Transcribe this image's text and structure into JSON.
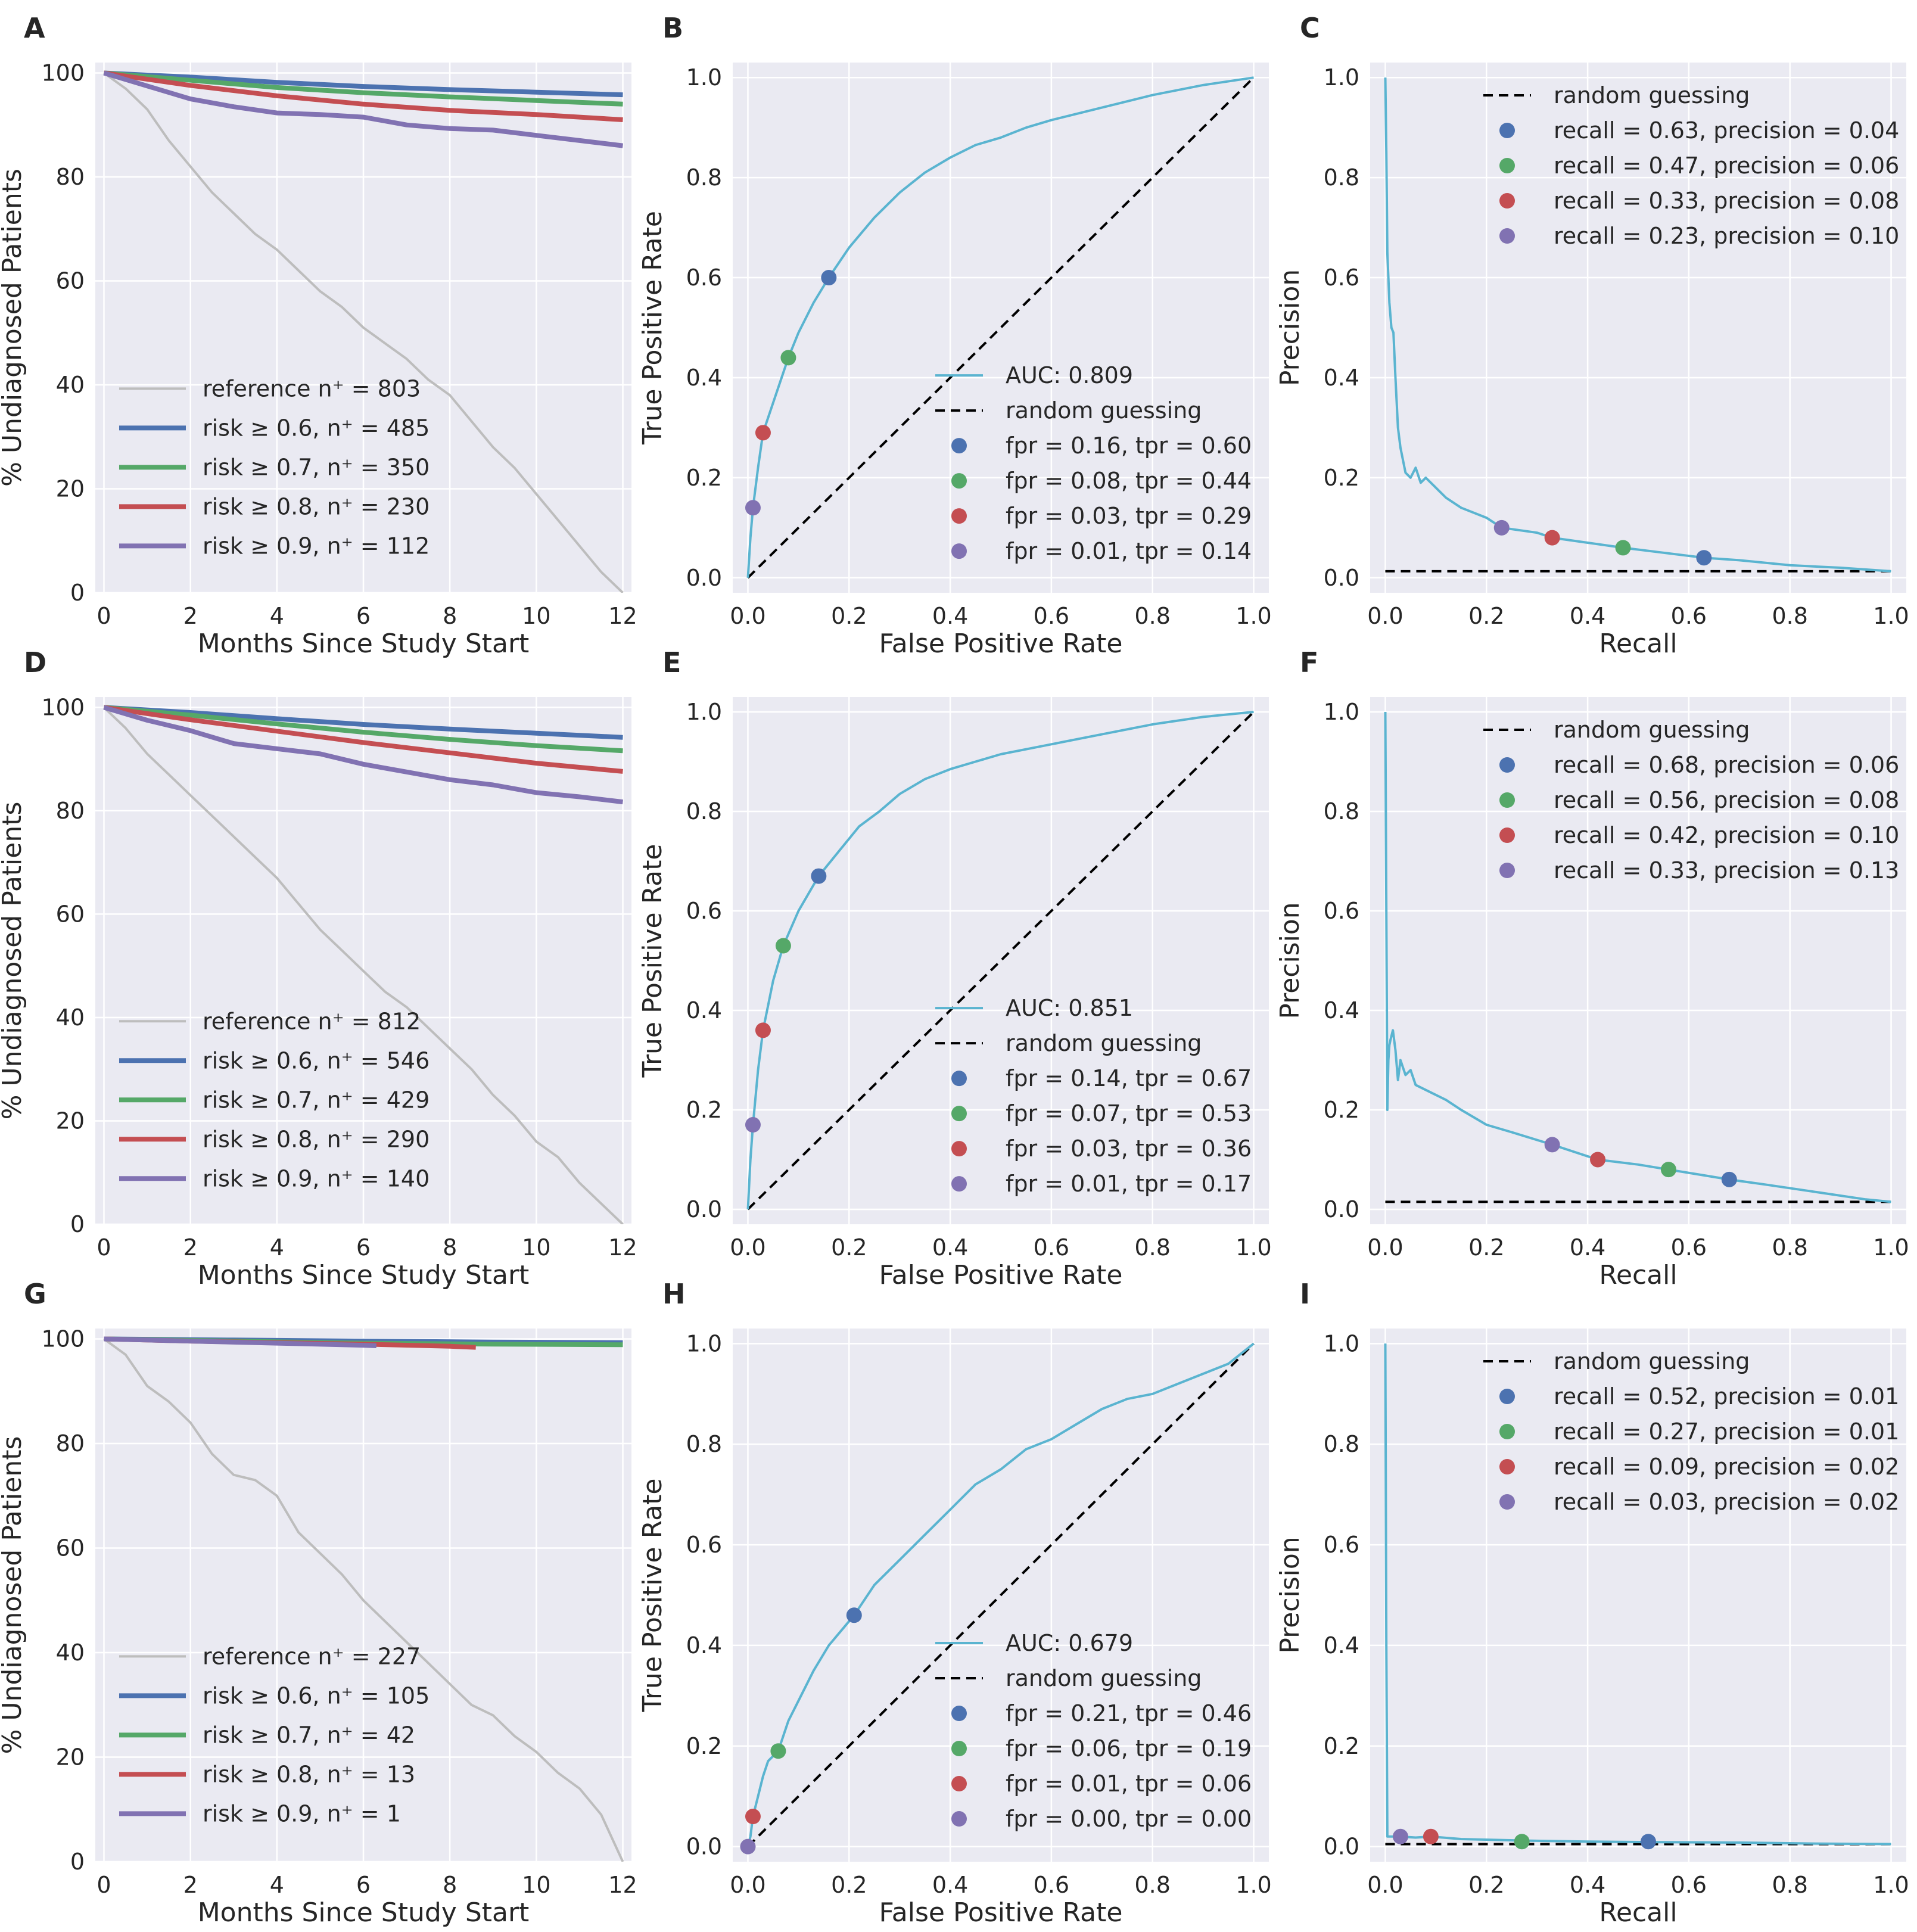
{
  "figure": {
    "colors": {
      "background": "#eaeaf2",
      "grid": "#ffffff",
      "curve": "#5ab4d0",
      "reference": "#bdbdbd",
      "s06": "#4c72b0",
      "s07": "#55a868",
      "s08": "#c44e52",
      "s09": "#8172b2",
      "diagonal": "#000000"
    },
    "text": {
      "months": "Months Since Study Start",
      "undiagnosed": "% Undiagnosed Patients",
      "fpr": "False Positive Rate",
      "tpr": "True Positive Rate",
      "recall": "Recall",
      "precision": "Precision",
      "random": "random guessing"
    },
    "ticks": {
      "months": [
        "0",
        "2",
        "4",
        "6",
        "8",
        "10",
        "12"
      ],
      "percent": [
        "0",
        "20",
        "40",
        "60",
        "80",
        "100"
      ],
      "unit": [
        "0.0",
        "0.2",
        "0.4",
        "0.6",
        "0.8",
        "1.0"
      ]
    }
  },
  "chart_data": [
    {
      "panel": "A",
      "type": "line",
      "title": "",
      "xlabel": "Months Since Study Start",
      "ylabel": "% Undiagnosed Patients",
      "xlim": [
        -0.2,
        12.2
      ],
      "ylim": [
        0,
        102
      ],
      "series": [
        {
          "key": "reference",
          "label": "reference n⁺ = 803",
          "x": [
            0,
            0.5,
            1,
            1.5,
            2,
            2.5,
            3,
            3.5,
            4,
            4.5,
            5,
            5.5,
            6,
            6.5,
            7,
            7.5,
            8,
            8.5,
            9,
            9.5,
            10,
            10.5,
            11,
            11.5,
            12
          ],
          "y": [
            100,
            97,
            93,
            87,
            82,
            77,
            73,
            69,
            66,
            62,
            58,
            55,
            51,
            48,
            45,
            41,
            38,
            33,
            28,
            24,
            19,
            14,
            9,
            4,
            0
          ]
        },
        {
          "key": "s06",
          "label": "risk ≥ 0.6, n⁺ = 485",
          "x": [
            0,
            2,
            4,
            6,
            8,
            10,
            12
          ],
          "y": [
            100,
            99.2,
            98.2,
            97.4,
            96.8,
            96.3,
            95.8
          ]
        },
        {
          "key": "s07",
          "label": "risk ≥ 0.7, n⁺ = 350",
          "x": [
            0,
            2,
            4,
            6,
            8,
            10,
            12
          ],
          "y": [
            100,
            98.6,
            97.2,
            96.2,
            95.4,
            94.7,
            94.0
          ]
        },
        {
          "key": "s08",
          "label": "risk ≥ 0.8, n⁺ = 230",
          "x": [
            0,
            2,
            4,
            6,
            8,
            10,
            12
          ],
          "y": [
            100,
            97.6,
            95.6,
            94.0,
            92.8,
            92.0,
            91.0
          ]
        },
        {
          "key": "s09",
          "label": "risk ≥ 0.9, n⁺ = 112",
          "x": [
            0,
            1,
            2,
            3,
            4,
            5,
            6,
            7,
            8,
            9,
            10,
            11,
            12
          ],
          "y": [
            100,
            97.5,
            95,
            93.5,
            92.3,
            92,
            91.5,
            90,
            89.3,
            89,
            88,
            87,
            86
          ]
        }
      ]
    },
    {
      "panel": "B",
      "type": "line",
      "kind": "roc",
      "title": "",
      "xlabel": "False Positive Rate",
      "ylabel": "True Positive Rate",
      "xlim": [
        -0.03,
        1.03
      ],
      "ylim": [
        -0.03,
        1.03
      ],
      "curve": {
        "label": "AUC: 0.809",
        "x": [
          0,
          0.005,
          0.01,
          0.02,
          0.03,
          0.05,
          0.08,
          0.1,
          0.13,
          0.16,
          0.2,
          0.25,
          0.3,
          0.35,
          0.4,
          0.45,
          0.5,
          0.55,
          0.6,
          0.7,
          0.8,
          0.9,
          1.0
        ],
        "y": [
          0,
          0.08,
          0.14,
          0.22,
          0.29,
          0.35,
          0.44,
          0.49,
          0.55,
          0.6,
          0.66,
          0.72,
          0.77,
          0.81,
          0.84,
          0.865,
          0.88,
          0.9,
          0.915,
          0.94,
          0.965,
          0.985,
          1.0
        ]
      },
      "points": [
        {
          "key": "s06",
          "label": "fpr = 0.16, tpr = 0.60",
          "x": 0.16,
          "y": 0.6
        },
        {
          "key": "s07",
          "label": "fpr = 0.08, tpr = 0.44",
          "x": 0.08,
          "y": 0.44
        },
        {
          "key": "s08",
          "label": "fpr = 0.03, tpr = 0.29",
          "x": 0.03,
          "y": 0.29
        },
        {
          "key": "s09",
          "label": "fpr = 0.01, tpr = 0.14",
          "x": 0.01,
          "y": 0.14
        }
      ]
    },
    {
      "panel": "C",
      "type": "line",
      "kind": "pr",
      "title": "",
      "xlabel": "Recall",
      "ylabel": "Precision",
      "xlim": [
        -0.03,
        1.03
      ],
      "ylim": [
        -0.03,
        1.03
      ],
      "baseline": 0.013,
      "curve": {
        "x": [
          0,
          0.002,
          0.004,
          0.008,
          0.012,
          0.016,
          0.02,
          0.025,
          0.03,
          0.04,
          0.05,
          0.06,
          0.07,
          0.08,
          0.1,
          0.12,
          0.15,
          0.2,
          0.23,
          0.3,
          0.33,
          0.4,
          0.47,
          0.55,
          0.63,
          0.7,
          0.8,
          0.9,
          1.0
        ],
        "y": [
          1.0,
          0.85,
          0.65,
          0.55,
          0.5,
          0.49,
          0.4,
          0.3,
          0.26,
          0.21,
          0.2,
          0.22,
          0.19,
          0.2,
          0.18,
          0.16,
          0.14,
          0.12,
          0.1,
          0.09,
          0.08,
          0.07,
          0.06,
          0.05,
          0.04,
          0.035,
          0.025,
          0.02,
          0.013
        ]
      },
      "points": [
        {
          "key": "s06",
          "label": "recall = 0.63, precision = 0.04",
          "x": 0.63,
          "y": 0.04
        },
        {
          "key": "s07",
          "label": "recall = 0.47, precision = 0.06",
          "x": 0.47,
          "y": 0.06
        },
        {
          "key": "s08",
          "label": "recall = 0.33, precision = 0.08",
          "x": 0.33,
          "y": 0.08
        },
        {
          "key": "s09",
          "label": "recall = 0.23, precision = 0.10",
          "x": 0.23,
          "y": 0.1
        }
      ]
    },
    {
      "panel": "D",
      "type": "line",
      "title": "",
      "xlabel": "Months Since Study Start",
      "ylabel": "% Undiagnosed Patients",
      "xlim": [
        -0.2,
        12.2
      ],
      "ylim": [
        0,
        102
      ],
      "series": [
        {
          "key": "reference",
          "label": "reference n⁺ = 812",
          "x": [
            0,
            0.5,
            1,
            1.5,
            2,
            2.5,
            3,
            3.5,
            4,
            4.5,
            5,
            5.5,
            6,
            6.5,
            7,
            7.5,
            8,
            8.5,
            9,
            9.5,
            10,
            10.5,
            11,
            11.5,
            12
          ],
          "y": [
            100,
            96,
            91,
            87,
            83,
            79,
            75,
            71,
            67,
            62,
            57,
            53,
            49,
            45,
            42,
            38,
            34,
            30,
            25,
            21,
            16,
            13,
            8,
            4,
            0
          ]
        },
        {
          "key": "s06",
          "label": "risk ≥ 0.6, n⁺ = 546",
          "x": [
            0,
            2,
            4,
            6,
            8,
            10,
            12
          ],
          "y": [
            100,
            99.0,
            97.8,
            96.7,
            95.8,
            95.0,
            94.2
          ]
        },
        {
          "key": "s07",
          "label": "risk ≥ 0.7, n⁺ = 429",
          "x": [
            0,
            2,
            4,
            6,
            8,
            10,
            12
          ],
          "y": [
            100,
            98.5,
            96.8,
            95.2,
            93.8,
            92.6,
            91.6
          ]
        },
        {
          "key": "s08",
          "label": "risk ≥ 0.8, n⁺ = 290",
          "x": [
            0,
            2,
            4,
            6,
            8,
            10,
            12
          ],
          "y": [
            100,
            97.6,
            95.4,
            93.2,
            91.2,
            89.2,
            87.6
          ]
        },
        {
          "key": "s09",
          "label": "risk ≥ 0.9, n⁺ = 140",
          "x": [
            0,
            1,
            2,
            3,
            4,
            5,
            6,
            7,
            8,
            9,
            10,
            11,
            12
          ],
          "y": [
            100,
            97.5,
            95.5,
            93,
            92,
            91,
            89,
            87.5,
            86,
            85,
            83.5,
            82.7,
            81.7
          ]
        }
      ]
    },
    {
      "panel": "E",
      "type": "line",
      "kind": "roc",
      "title": "",
      "xlabel": "False Positive Rate",
      "ylabel": "True Positive Rate",
      "xlim": [
        -0.03,
        1.03
      ],
      "ylim": [
        -0.03,
        1.03
      ],
      "curve": {
        "label": "AUC: 0.851",
        "x": [
          0,
          0.005,
          0.01,
          0.02,
          0.03,
          0.05,
          0.07,
          0.1,
          0.14,
          0.18,
          0.22,
          0.26,
          0.3,
          0.35,
          0.4,
          0.45,
          0.5,
          0.6,
          0.7,
          0.8,
          0.9,
          1.0
        ],
        "y": [
          0,
          0.1,
          0.17,
          0.28,
          0.36,
          0.46,
          0.53,
          0.6,
          0.67,
          0.72,
          0.77,
          0.8,
          0.835,
          0.865,
          0.885,
          0.9,
          0.915,
          0.935,
          0.955,
          0.975,
          0.99,
          1.0
        ]
      },
      "points": [
        {
          "key": "s06",
          "label": "fpr = 0.14, tpr = 0.67",
          "x": 0.14,
          "y": 0.67
        },
        {
          "key": "s07",
          "label": "fpr = 0.07, tpr = 0.53",
          "x": 0.07,
          "y": 0.53
        },
        {
          "key": "s08",
          "label": "fpr = 0.03, tpr = 0.36",
          "x": 0.03,
          "y": 0.36
        },
        {
          "key": "s09",
          "label": "fpr = 0.01, tpr = 0.17",
          "x": 0.01,
          "y": 0.17
        }
      ]
    },
    {
      "panel": "F",
      "type": "line",
      "kind": "pr",
      "title": "",
      "xlabel": "Recall",
      "ylabel": "Precision",
      "xlim": [
        -0.03,
        1.03
      ],
      "ylim": [
        -0.03,
        1.03
      ],
      "baseline": 0.015,
      "curve": {
        "x": [
          0,
          0.002,
          0.004,
          0.006,
          0.008,
          0.01,
          0.015,
          0.02,
          0.025,
          0.03,
          0.04,
          0.05,
          0.06,
          0.08,
          0.1,
          0.12,
          0.15,
          0.2,
          0.25,
          0.33,
          0.42,
          0.5,
          0.56,
          0.62,
          0.68,
          0.75,
          0.85,
          0.95,
          1.0
        ],
        "y": [
          1.0,
          0.6,
          0.2,
          0.3,
          0.33,
          0.34,
          0.36,
          0.32,
          0.26,
          0.3,
          0.27,
          0.28,
          0.25,
          0.24,
          0.23,
          0.22,
          0.2,
          0.17,
          0.155,
          0.13,
          0.1,
          0.09,
          0.08,
          0.07,
          0.06,
          0.05,
          0.035,
          0.02,
          0.015
        ]
      },
      "points": [
        {
          "key": "s06",
          "label": "recall = 0.68, precision = 0.06",
          "x": 0.68,
          "y": 0.06
        },
        {
          "key": "s07",
          "label": "recall = 0.56, precision = 0.08",
          "x": 0.56,
          "y": 0.08
        },
        {
          "key": "s08",
          "label": "recall = 0.42, precision = 0.10",
          "x": 0.42,
          "y": 0.1
        },
        {
          "key": "s09",
          "label": "recall = 0.33, precision = 0.13",
          "x": 0.33,
          "y": 0.13
        }
      ]
    },
    {
      "panel": "G",
      "type": "line",
      "title": "",
      "xlabel": "Months Since Study Start",
      "ylabel": "% Undiagnosed Patients",
      "xlim": [
        -0.2,
        12.2
      ],
      "ylim": [
        0,
        102
      ],
      "series": [
        {
          "key": "reference",
          "label": "reference n⁺ = 227",
          "x": [
            0,
            0.5,
            1,
            1.5,
            2,
            2.5,
            3,
            3.5,
            4,
            4.5,
            5,
            5.5,
            6,
            6.5,
            7,
            7.5,
            8,
            8.5,
            9,
            9.5,
            10,
            10.5,
            11,
            11.5,
            12
          ],
          "y": [
            100,
            97,
            91,
            88,
            84,
            78,
            74,
            73,
            70,
            63,
            59,
            55,
            50,
            46,
            42,
            38,
            34,
            30,
            28,
            24,
            21,
            17,
            14,
            9,
            0
          ]
        },
        {
          "key": "s06",
          "label": "risk ≥ 0.6, n⁺ = 105",
          "x": [
            0,
            3,
            6,
            9,
            12
          ],
          "y": [
            100,
            99.8,
            99.6,
            99.4,
            99.3
          ]
        },
        {
          "key": "s07",
          "label": "risk ≥ 0.7, n⁺ = 42",
          "x": [
            0,
            3,
            6,
            9,
            12
          ],
          "y": [
            100,
            99.6,
            99.2,
            99.0,
            98.9
          ]
        },
        {
          "key": "s08",
          "label": "risk ≥ 0.8, n⁺ = 13",
          "x": [
            0,
            2,
            4,
            6,
            8,
            8.6
          ],
          "y": [
            100,
            99.6,
            99.3,
            99.0,
            98.6,
            98.4
          ]
        },
        {
          "key": "s09",
          "label": "risk ≥ 0.9, n⁺ = 1",
          "x": [
            0,
            2,
            4,
            6,
            6.3
          ],
          "y": [
            100,
            99.6,
            99.2,
            98.8,
            98.7
          ]
        }
      ]
    },
    {
      "panel": "H",
      "type": "line",
      "kind": "roc",
      "title": "",
      "xlabel": "False Positive Rate",
      "ylabel": "True Positive Rate",
      "xlim": [
        -0.03,
        1.03
      ],
      "ylim": [
        -0.03,
        1.03
      ],
      "curve": {
        "label": "AUC: 0.679",
        "x": [
          0,
          0.005,
          0.01,
          0.02,
          0.03,
          0.04,
          0.06,
          0.08,
          0.1,
          0.13,
          0.16,
          0.21,
          0.25,
          0.3,
          0.35,
          0.4,
          0.45,
          0.5,
          0.55,
          0.6,
          0.65,
          0.7,
          0.75,
          0.8,
          0.85,
          0.9,
          0.95,
          1.0
        ],
        "y": [
          0,
          0.02,
          0.06,
          0.1,
          0.14,
          0.17,
          0.19,
          0.25,
          0.29,
          0.35,
          0.4,
          0.46,
          0.52,
          0.57,
          0.62,
          0.67,
          0.72,
          0.75,
          0.79,
          0.81,
          0.84,
          0.87,
          0.89,
          0.9,
          0.92,
          0.94,
          0.96,
          1.0
        ]
      },
      "points": [
        {
          "key": "s06",
          "label": "fpr = 0.21, tpr = 0.46",
          "x": 0.21,
          "y": 0.46
        },
        {
          "key": "s07",
          "label": "fpr = 0.06, tpr = 0.19",
          "x": 0.06,
          "y": 0.19
        },
        {
          "key": "s08",
          "label": "fpr = 0.01, tpr = 0.06",
          "x": 0.01,
          "y": 0.06
        },
        {
          "key": "s09",
          "label": "fpr = 0.00, tpr = 0.00",
          "x": 0.0,
          "y": 0.0
        }
      ]
    },
    {
      "panel": "I",
      "type": "line",
      "kind": "pr",
      "title": "",
      "xlabel": "Recall",
      "ylabel": "Precision",
      "xlim": [
        -0.03,
        1.03
      ],
      "ylim": [
        -0.03,
        1.03
      ],
      "baseline": 0.005,
      "curve": {
        "x": [
          0,
          0.002,
          0.004,
          0.01,
          0.03,
          0.06,
          0.09,
          0.15,
          0.27,
          0.4,
          0.52,
          0.7,
          0.85,
          1.0
        ],
        "y": [
          1.0,
          0.4,
          0.02,
          0.02,
          0.02,
          0.018,
          0.02,
          0.015,
          0.012,
          0.01,
          0.009,
          0.008,
          0.006,
          0.005
        ]
      },
      "points": [
        {
          "key": "s06",
          "label": "recall = 0.52, precision = 0.01",
          "x": 0.52,
          "y": 0.01
        },
        {
          "key": "s07",
          "label": "recall = 0.27, precision = 0.01",
          "x": 0.27,
          "y": 0.01
        },
        {
          "key": "s08",
          "label": "recall = 0.09, precision = 0.02",
          "x": 0.09,
          "y": 0.02
        },
        {
          "key": "s09",
          "label": "recall = 0.03, precision = 0.02",
          "x": 0.03,
          "y": 0.02
        }
      ]
    }
  ]
}
